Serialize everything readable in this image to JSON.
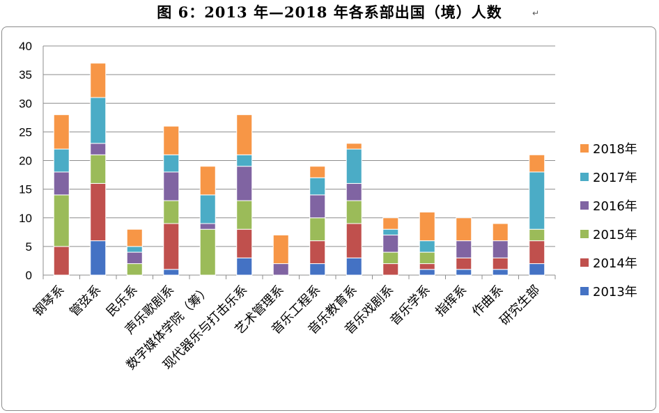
{
  "title": "图 6：2013 年—2018 年各系部出国（境）人数",
  "title_mark": "↵",
  "chart_data": {
    "type": "bar",
    "stacked": true,
    "categories": [
      "钢琴系",
      "管弦系",
      "民乐系",
      "声乐歌剧系",
      "数字媒体学院（筹）",
      "现代器乐与打击乐系",
      "艺术管理系",
      "音乐工程系",
      "音乐教育系",
      "音乐戏剧系",
      "音乐学系",
      "指挥系",
      "作曲系",
      "研究生部"
    ],
    "series": [
      {
        "name": "2013年",
        "color": "#4472C4",
        "values": [
          0,
          6,
          0,
          1,
          0,
          3,
          0,
          2,
          3,
          0,
          1,
          1,
          1,
          2
        ]
      },
      {
        "name": "2014年",
        "color": "#C0504D",
        "values": [
          5,
          10,
          0,
          8,
          0,
          5,
          0,
          4,
          6,
          2,
          1,
          2,
          2,
          4
        ]
      },
      {
        "name": "2015年",
        "color": "#9BBB59",
        "values": [
          9,
          5,
          2,
          4,
          8,
          5,
          0,
          4,
          4,
          2,
          2,
          0,
          0,
          2
        ]
      },
      {
        "name": "2016年",
        "color": "#8064A2",
        "values": [
          4,
          2,
          2,
          5,
          1,
          6,
          2,
          4,
          3,
          3,
          0,
          3,
          3,
          0
        ]
      },
      {
        "name": "2017年",
        "color": "#4BACC6",
        "values": [
          4,
          8,
          1,
          3,
          5,
          2,
          0,
          3,
          6,
          1,
          2,
          0,
          0,
          10
        ]
      },
      {
        "name": "2018年",
        "color": "#F79646",
        "values": [
          6,
          6,
          3,
          5,
          5,
          7,
          5,
          2,
          1,
          2,
          5,
          4,
          3,
          3
        ]
      }
    ],
    "yticks": [
      "0",
      "5",
      "10",
      "15",
      "20",
      "25",
      "30",
      "35",
      "40"
    ],
    "ylim": [
      0,
      40
    ],
    "grid": true,
    "legend_position": "right"
  }
}
